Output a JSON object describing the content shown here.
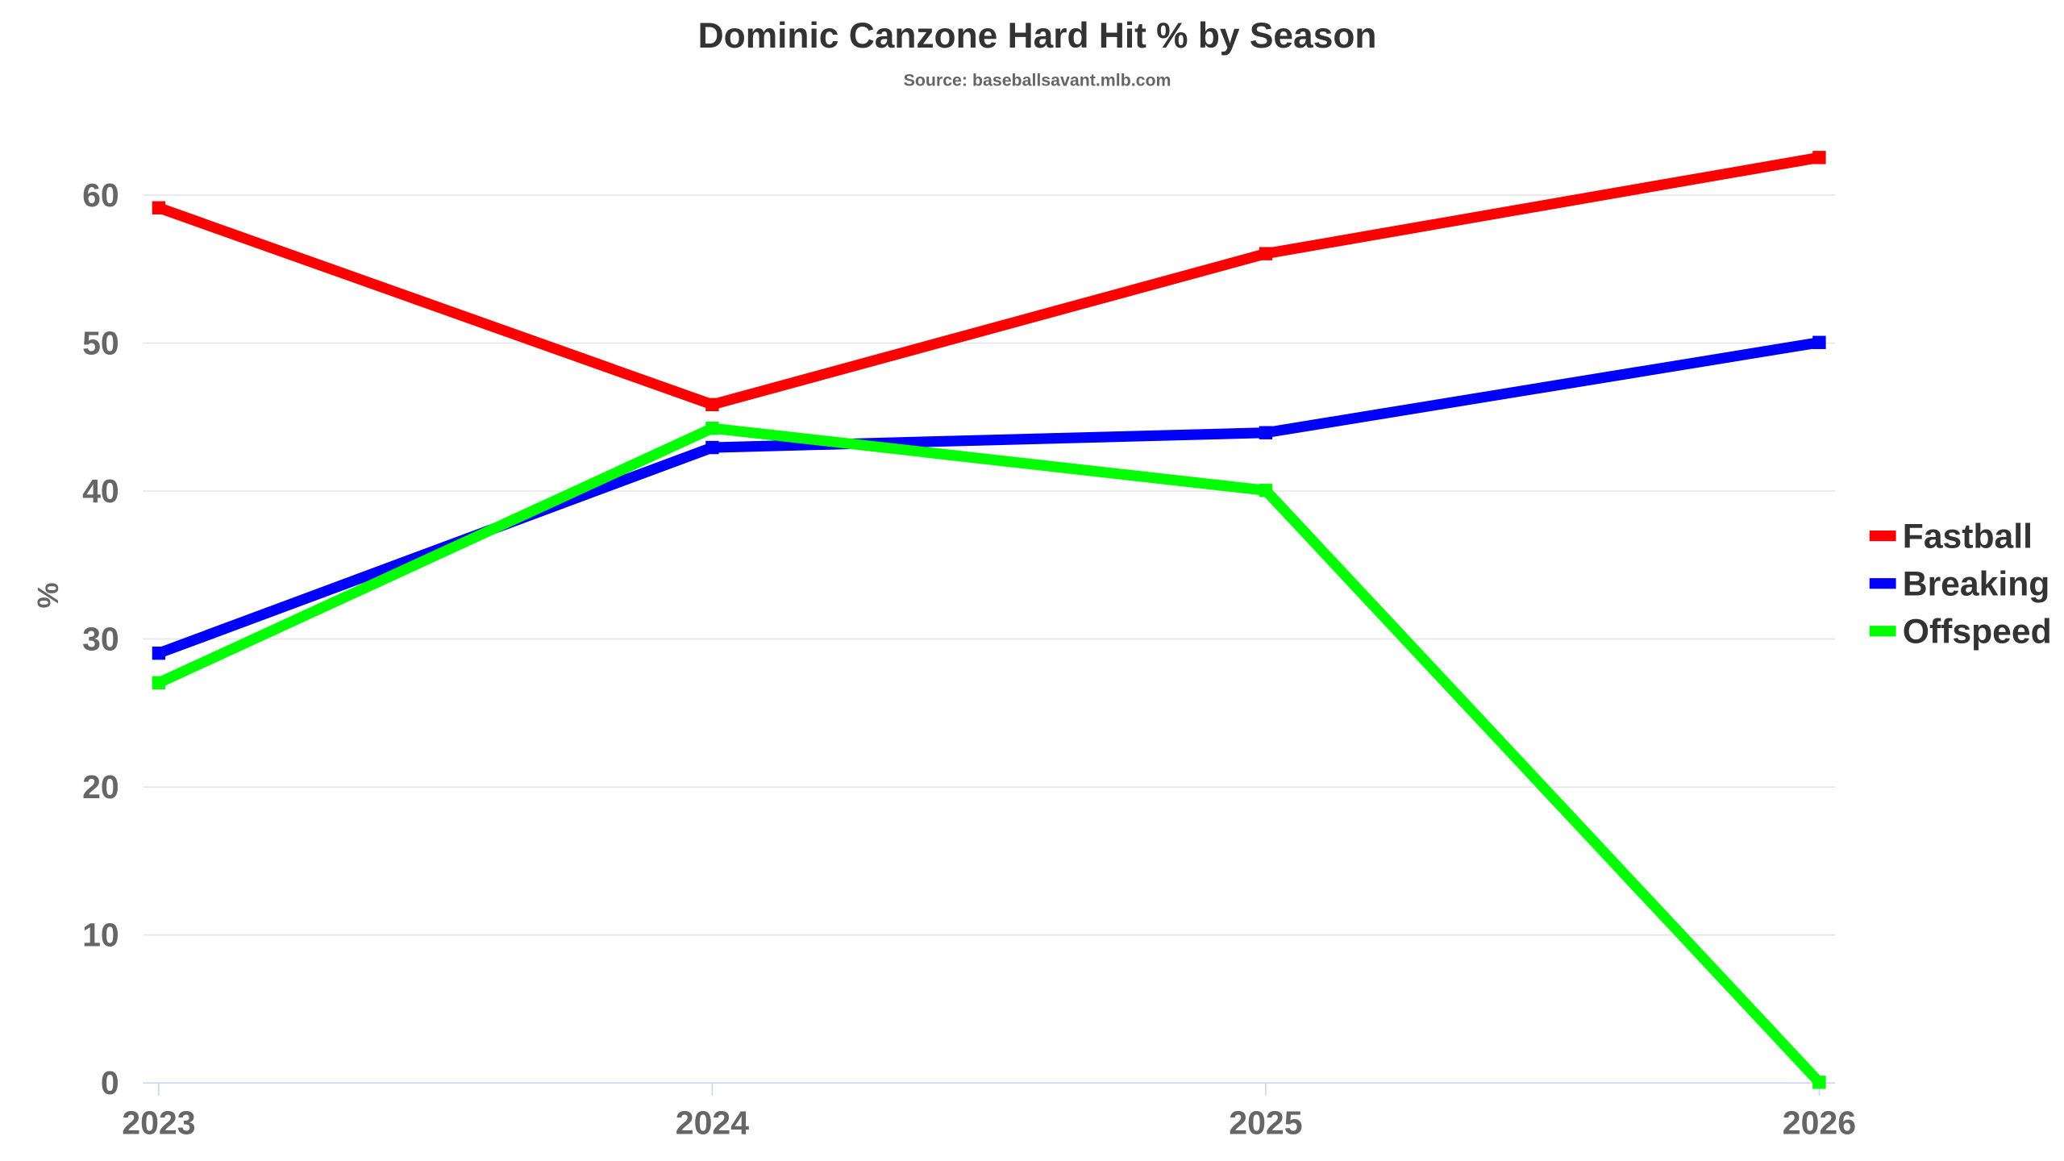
{
  "chart_data": {
    "type": "line",
    "title": "Dominic Canzone Hard Hit % by Season",
    "subtitle": "Source: baseballsavant.mlb.com",
    "xlabel": "",
    "ylabel": "%",
    "x": [
      "2023",
      "2024",
      "2025",
      "2026"
    ],
    "ylim": [
      0,
      65
    ],
    "yticks": [
      "0",
      "10",
      "20",
      "30",
      "40",
      "50",
      "60"
    ],
    "grid": true,
    "legend_position": "right",
    "series": [
      {
        "name": "Fastball",
        "color": "#ff0000",
        "values": [
          59.1,
          45.8,
          56.0,
          62.5
        ]
      },
      {
        "name": "Breaking",
        "color": "#0000ff",
        "values": [
          29.0,
          42.9,
          43.9,
          50.0
        ]
      },
      {
        "name": "Offspeed",
        "color": "#00ff00",
        "values": [
          27.0,
          44.2,
          40.0,
          0.0
        ]
      }
    ]
  }
}
